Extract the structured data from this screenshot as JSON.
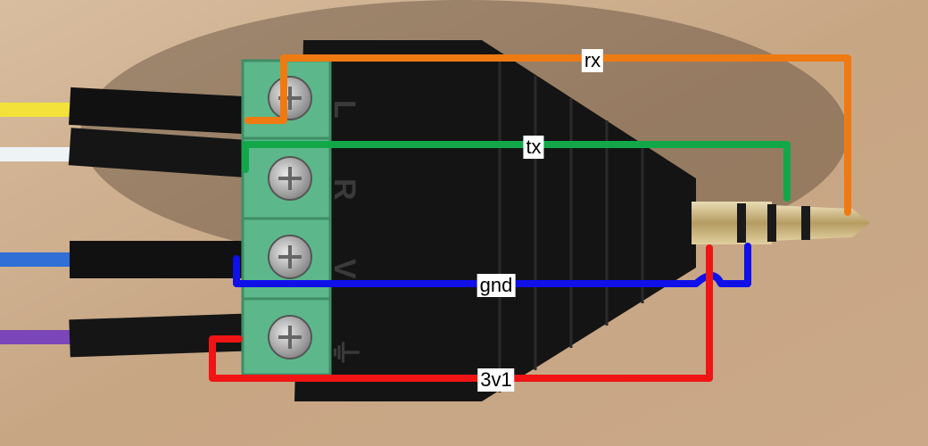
{
  "image": {
    "terminal_markings": [
      "L",
      "R",
      "V",
      "⏚"
    ]
  },
  "wires": [
    {
      "label": "rx",
      "color": "#f07a12"
    },
    {
      "label": "tx",
      "color": "#12a84a"
    },
    {
      "label": "gnd",
      "color": "#1010e8"
    },
    {
      "label": "3v1",
      "color": "#f01414"
    }
  ],
  "colors": {
    "background_wood": "#c9a98a",
    "terminal_block": "#5cb88a",
    "plug_body": "#141414",
    "jack_metal": "#c8b27a"
  }
}
